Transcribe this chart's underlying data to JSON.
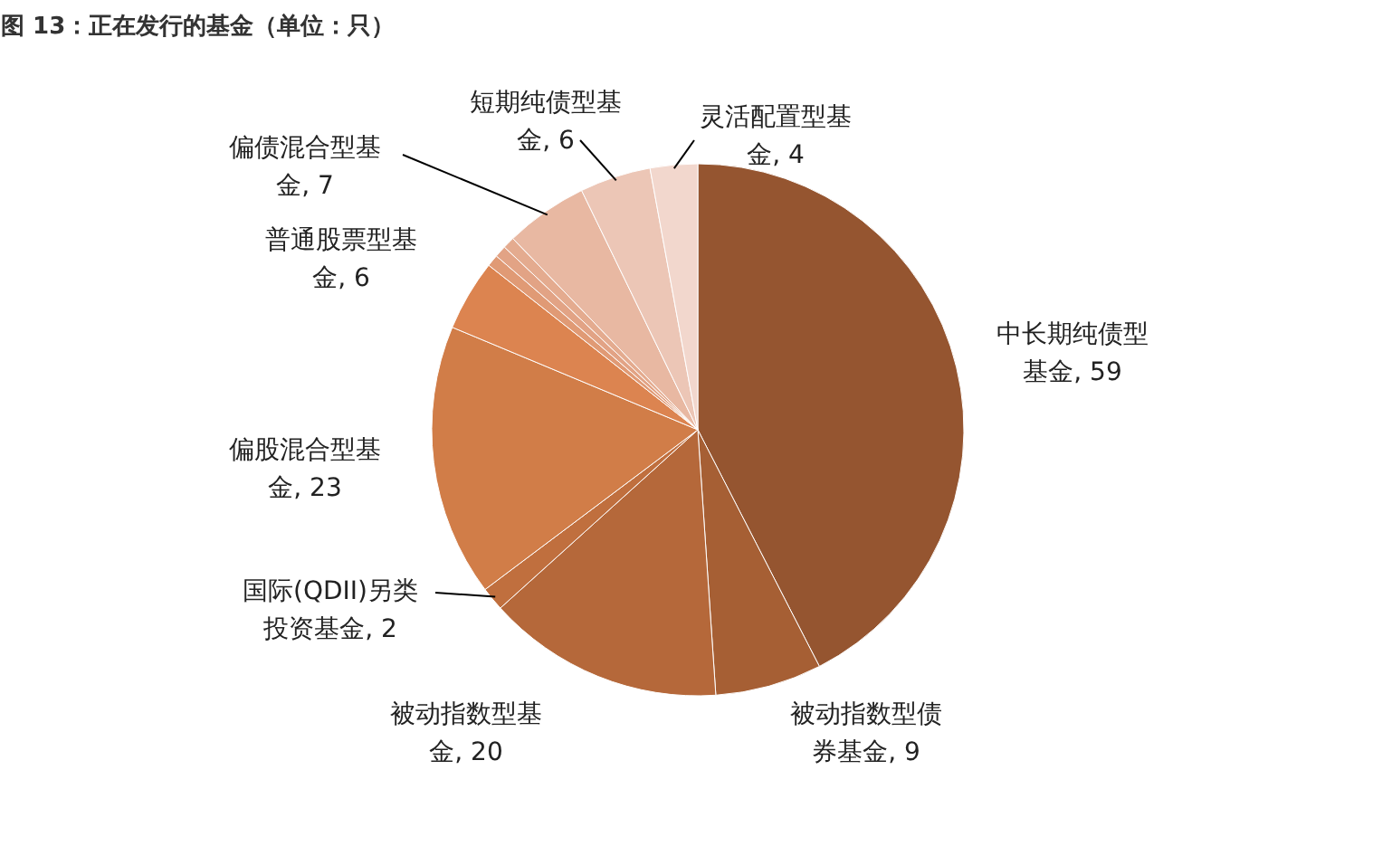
{
  "chart_data": {
    "type": "pie",
    "title": "图 13：正在发行的基金（单位：只）",
    "categories": [
      "中长期纯债型基金",
      "被动指数型债券基金",
      "被动指数型基金",
      "国际(QDII)另类投资基金",
      "偏股混合型基金",
      "普通股票型基金",
      null,
      null,
      null,
      "偏债混合型基金",
      "短期纯债型基金",
      "灵活配置型基金"
    ],
    "values": [
      59,
      9,
      20,
      2,
      23,
      6,
      1,
      1,
      1,
      7,
      6,
      4
    ],
    "value_labels": [
      ", 59",
      ", 9",
      ", 20",
      ", 2",
      ", 23",
      ", 6",
      null,
      null,
      null,
      ", 7",
      ", 6",
      ", 4"
    ],
    "colors": [
      "#955530",
      "#a65f34",
      "#b5683a",
      "#c06f3e",
      "#d17d48",
      "#dc8450",
      "#e09a75",
      "#e2a385",
      "#e4ab8f",
      "#e8b8a2",
      "#ecc6b6",
      "#f2d7cd"
    ]
  }
}
